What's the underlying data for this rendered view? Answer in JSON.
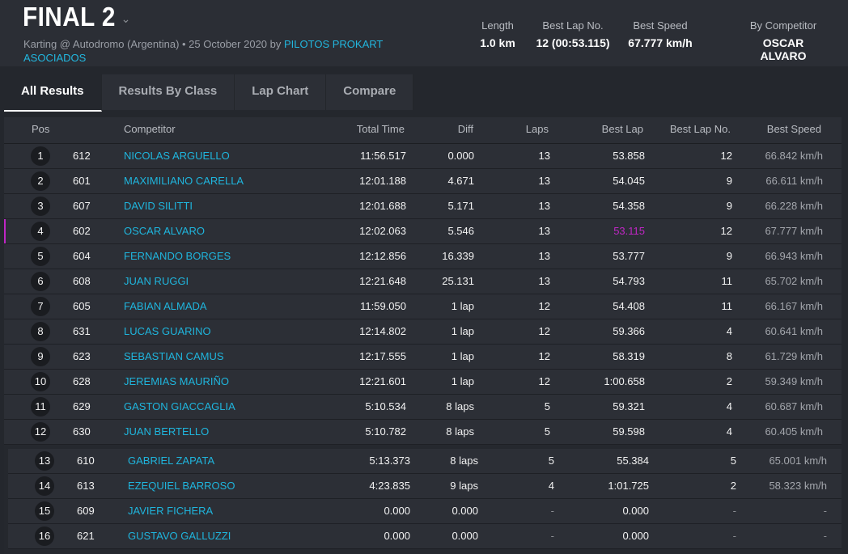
{
  "session": {
    "title": "FINAL 2",
    "subtitle_prefix": "Karting @ Autodromo (Argentina) • 25 October 2020 by",
    "organizer": "PILOTOS PROKART ASOCIADOS"
  },
  "stats": {
    "length": {
      "label": "Length",
      "value": "1.0 km"
    },
    "best_lap_no": {
      "label": "Best Lap No.",
      "value": "12 (00:53.115)"
    },
    "best_speed": {
      "label": "Best Speed",
      "value": "67.777 km/h"
    },
    "by_competitor": {
      "label": "By Competitor",
      "value": "OSCAR ALVARO"
    }
  },
  "tabs": [
    {
      "label": "All Results",
      "active": true
    },
    {
      "label": "Results By Class",
      "active": false
    },
    {
      "label": "Lap Chart",
      "active": false
    },
    {
      "label": "Compare",
      "active": false
    }
  ],
  "columns": {
    "pos": "Pos",
    "competitor": "Competitor",
    "total_time": "Total Time",
    "diff": "Diff",
    "laps": "Laps",
    "best_lap": "Best Lap",
    "best_lap_no": "Best Lap No.",
    "best_speed": "Best Speed"
  },
  "colors": {
    "accent": "#1fb5dd",
    "personal_best": "#c026c5",
    "background": "#24272d"
  },
  "results": [
    {
      "pos": "1",
      "num": "612",
      "name": "NICOLAS ARGUELLO",
      "total": "11:56.517",
      "diff": "0.000",
      "laps": "13",
      "best_lap": "53.858",
      "best_lap_no": "12",
      "speed": "66.842 km/h",
      "fastest": false
    },
    {
      "pos": "2",
      "num": "601",
      "name": "MAXIMILIANO CARELLA",
      "total": "12:01.188",
      "diff": "4.671",
      "laps": "13",
      "best_lap": "54.045",
      "best_lap_no": "9",
      "speed": "66.611 km/h",
      "fastest": false
    },
    {
      "pos": "3",
      "num": "607",
      "name": "DAVID SILITTI",
      "total": "12:01.688",
      "diff": "5.171",
      "laps": "13",
      "best_lap": "54.358",
      "best_lap_no": "9",
      "speed": "66.228 km/h",
      "fastest": false
    },
    {
      "pos": "4",
      "num": "602",
      "name": "OSCAR ALVARO",
      "total": "12:02.063",
      "diff": "5.546",
      "laps": "13",
      "best_lap": "53.115",
      "best_lap_no": "12",
      "speed": "67.777 km/h",
      "fastest": true
    },
    {
      "pos": "5",
      "num": "604",
      "name": "FERNANDO BORGES",
      "total": "12:12.856",
      "diff": "16.339",
      "laps": "13",
      "best_lap": "53.777",
      "best_lap_no": "9",
      "speed": "66.943 km/h",
      "fastest": false
    },
    {
      "pos": "6",
      "num": "608",
      "name": "JUAN RUGGI",
      "total": "12:21.648",
      "diff": "25.131",
      "laps": "13",
      "best_lap": "54.793",
      "best_lap_no": "11",
      "speed": "65.702 km/h",
      "fastest": false
    },
    {
      "pos": "7",
      "num": "605",
      "name": "FABIAN ALMADA",
      "total": "11:59.050",
      "diff": "1 lap",
      "laps": "12",
      "best_lap": "54.408",
      "best_lap_no": "11",
      "speed": "66.167 km/h",
      "fastest": false
    },
    {
      "pos": "8",
      "num": "631",
      "name": "LUCAS GUARINO",
      "total": "12:14.802",
      "diff": "1 lap",
      "laps": "12",
      "best_lap": "59.366",
      "best_lap_no": "4",
      "speed": "60.641 km/h",
      "fastest": false
    },
    {
      "pos": "9",
      "num": "623",
      "name": "SEBASTIAN CAMUS",
      "total": "12:17.555",
      "diff": "1 lap",
      "laps": "12",
      "best_lap": "58.319",
      "best_lap_no": "8",
      "speed": "61.729 km/h",
      "fastest": false
    },
    {
      "pos": "10",
      "num": "628",
      "name": "JEREMIAS MAURIÑO",
      "total": "12:21.601",
      "diff": "1 lap",
      "laps": "12",
      "best_lap": "1:00.658",
      "best_lap_no": "2",
      "speed": "59.349 km/h",
      "fastest": false
    },
    {
      "pos": "11",
      "num": "629",
      "name": "GASTON GIACCAGLIA",
      "total": "5:10.534",
      "diff": "8 laps",
      "laps": "5",
      "best_lap": "59.321",
      "best_lap_no": "4",
      "speed": "60.687 km/h",
      "fastest": false
    },
    {
      "pos": "12",
      "num": "630",
      "name": "JUAN BERTELLO",
      "total": "5:10.782",
      "diff": "8 laps",
      "laps": "5",
      "best_lap": "59.598",
      "best_lap_no": "4",
      "speed": "60.405 km/h",
      "fastest": false
    },
    {
      "pos": "13",
      "num": "610",
      "name": "GABRIEL ZAPATA",
      "total": "5:13.373",
      "diff": "8 laps",
      "laps": "5",
      "best_lap": "55.384",
      "best_lap_no": "5",
      "speed": "65.001 km/h",
      "fastest": false
    },
    {
      "pos": "14",
      "num": "613",
      "name": "EZEQUIEL BARROSO",
      "total": "4:23.835",
      "diff": "9 laps",
      "laps": "4",
      "best_lap": "1:01.725",
      "best_lap_no": "2",
      "speed": "58.323 km/h",
      "fastest": false
    },
    {
      "pos": "15",
      "num": "609",
      "name": "JAVIER FICHERA",
      "total": "0.000",
      "diff": "0.000",
      "laps": "-",
      "best_lap": "0.000",
      "best_lap_no": "-",
      "speed": "-",
      "fastest": false
    },
    {
      "pos": "16",
      "num": "621",
      "name": "GUSTAVO GALLUZZI",
      "total": "0.000",
      "diff": "0.000",
      "laps": "-",
      "best_lap": "0.000",
      "best_lap_no": "-",
      "speed": "-",
      "fastest": false
    }
  ]
}
